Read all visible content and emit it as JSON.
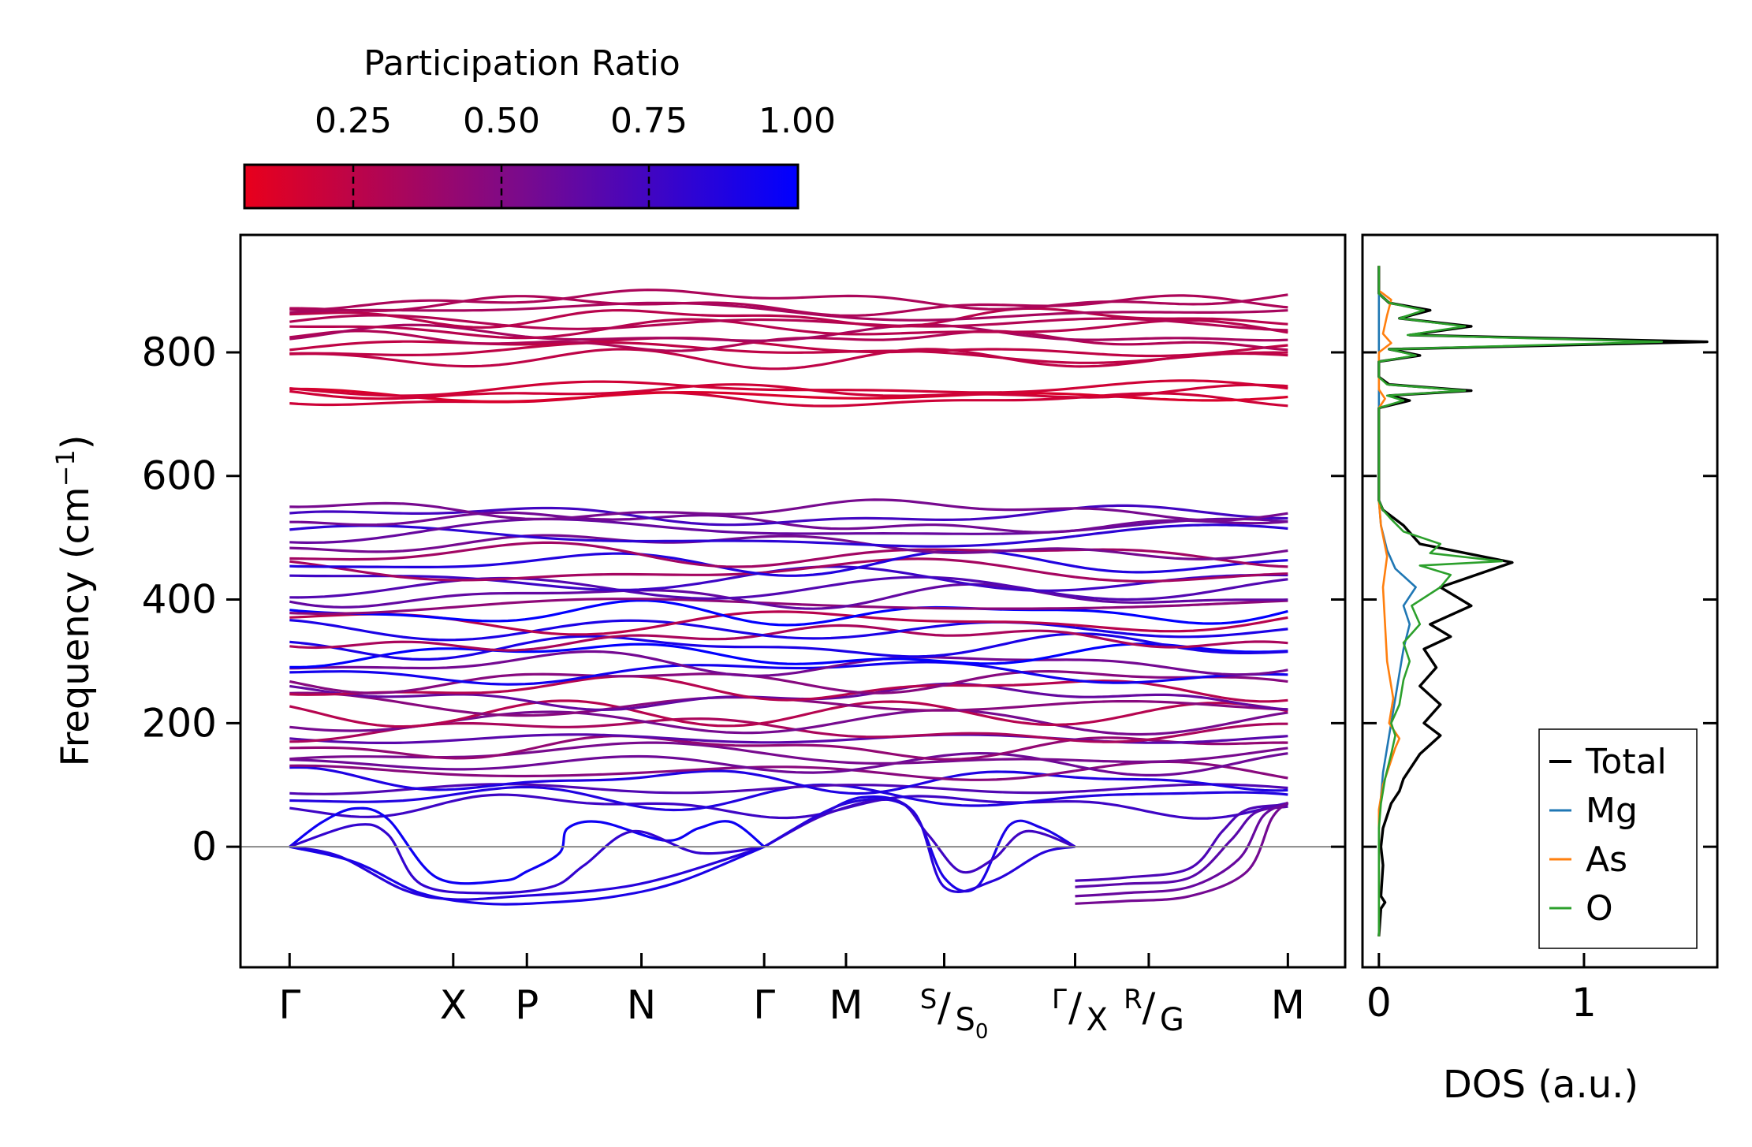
{
  "colorbar": {
    "title": "Participation Ratio",
    "ticks": [
      "0.25",
      "0.50",
      "0.75",
      "1.00"
    ],
    "tick_values": [
      0.25,
      0.5,
      0.75,
      1.0
    ],
    "range": [
      0.05,
      1.0
    ],
    "color_low": "#e8001c",
    "color_mid": "#7a0a8c",
    "color_high": "#0000ff"
  },
  "chart_data": [
    {
      "type": "line",
      "name": "phonon-dispersion",
      "ylabel_main": "Frequency (cm",
      "ylabel_sup": "−1",
      "ylabel_end": ")",
      "ylim": [
        -195,
        990
      ],
      "xlim": [
        -0.3,
        6.45
      ],
      "yticks": [
        0,
        200,
        400,
        600,
        800
      ],
      "ytick_labels": [
        "0",
        "200",
        "400",
        "600",
        "800"
      ],
      "kpoints": [
        {
          "pos": 0.0,
          "label": "Γ"
        },
        {
          "pos": 1.0,
          "label": "X"
        },
        {
          "pos": 1.45,
          "label": "P"
        },
        {
          "pos": 2.15,
          "label": "N"
        },
        {
          "pos": 2.9,
          "label": "Γ"
        },
        {
          "pos": 3.4,
          "label": "M"
        },
        {
          "pos": 4.0,
          "top": "S",
          "bottom": "S",
          "bottom_sub": "0"
        },
        {
          "pos": 4.8,
          "top": "Γ",
          "bottom": "X"
        },
        {
          "pos": 5.25,
          "top": "R",
          "bottom": "G"
        },
        {
          "pos": 6.1,
          "label": "M"
        }
      ],
      "segment_break": 4.8,
      "zero_line": 0,
      "acoustic_branches": [
        {
          "x": [
            0,
            0.2,
            0.4,
            0.6,
            0.9,
            1.3,
            1.45,
            1.65,
            1.7,
            1.9,
            2.3,
            2.5,
            2.7,
            2.9
          ],
          "y": [
            0,
            40,
            62,
            45,
            -50,
            -55,
            -40,
            -10,
            30,
            40,
            10,
            30,
            40,
            0
          ],
          "pr": 0.95
        },
        {
          "x": [
            0,
            0.4,
            0.6,
            0.8,
            1.2,
            1.6,
            1.8,
            2.1,
            2.5,
            2.9
          ],
          "y": [
            0,
            35,
            20,
            -60,
            -75,
            -65,
            -30,
            25,
            -10,
            0
          ],
          "pr": 0.8
        },
        {
          "x": [
            0,
            0.3,
            0.7,
            1.0,
            1.4,
            1.9,
            2.3,
            2.9
          ],
          "y": [
            0,
            -15,
            -70,
            -85,
            -80,
            -70,
            -50,
            0
          ],
          "pr": 0.85
        },
        {
          "x": [
            0,
            0.4,
            0.8,
            1.2,
            1.6,
            2.0,
            2.4,
            2.9
          ],
          "y": [
            0,
            -25,
            -75,
            -92,
            -90,
            -80,
            -55,
            0
          ],
          "pr": 0.9
        },
        {
          "x": [
            2.9,
            3.2,
            3.5,
            3.8,
            4.0,
            4.2,
            4.4,
            4.6,
            4.8
          ],
          "y": [
            0,
            45,
            80,
            60,
            -50,
            -65,
            35,
            30,
            0
          ],
          "pr": 0.9
        },
        {
          "x": [
            2.9,
            3.3,
            3.7,
            3.9,
            4.1,
            4.3,
            4.5,
            4.8
          ],
          "y": [
            0,
            55,
            75,
            20,
            -40,
            -20,
            25,
            0
          ],
          "pr": 0.75
        },
        {
          "x": [
            2.9,
            3.4,
            3.8,
            4.0,
            4.3,
            4.6,
            4.8
          ],
          "y": [
            0,
            70,
            60,
            -65,
            -55,
            -10,
            0
          ],
          "pr": 0.85
        },
        {
          "x": [
            4.8,
            5.1,
            5.5,
            5.7,
            5.85,
            6.1
          ],
          "y": [
            -55,
            -50,
            -35,
            25,
            60,
            68
          ],
          "pr": 0.7
        },
        {
          "x": [
            4.8,
            5.1,
            5.5,
            5.75,
            5.9,
            6.1
          ],
          "y": [
            -65,
            -60,
            -50,
            10,
            55,
            65
          ],
          "pr": 0.65
        },
        {
          "x": [
            4.8,
            5.1,
            5.5,
            5.8,
            5.95,
            6.1
          ],
          "y": [
            -80,
            -75,
            -65,
            -20,
            50,
            70
          ],
          "pr": 0.6
        },
        {
          "x": [
            4.8,
            5.1,
            5.5,
            5.85,
            6.0,
            6.1
          ],
          "y": [
            -92,
            -88,
            -80,
            -40,
            45,
            72
          ],
          "pr": 0.55
        }
      ],
      "optical_band_groups": [
        {
          "count": 34,
          "fmin": 60,
          "fmax": 520,
          "pr_low": 0.25,
          "pr_high": 1.0
        },
        {
          "count": 3,
          "fmin": 520,
          "fmax": 550,
          "pr_low": 0.45,
          "pr_high": 0.75
        },
        {
          "count": 4,
          "fmin": 720,
          "fmax": 745,
          "pr_low": 0.1,
          "pr_high": 0.2
        },
        {
          "count": 11,
          "fmin": 785,
          "fmax": 890,
          "pr_low": 0.15,
          "pr_high": 0.35
        }
      ]
    },
    {
      "type": "line",
      "name": "density-of-states",
      "xlabel": "DOS (a.u.)",
      "xlim": [
        -0.08,
        1.65
      ],
      "ylim": [
        -195,
        990
      ],
      "xticks": [
        0,
        1
      ],
      "xtick_labels": [
        "0",
        "1"
      ],
      "legend_position": "lower-right",
      "series": [
        {
          "name": "Total",
          "color": "#000000",
          "points": [
            [
              0,
              -145
            ],
            [
              0.01,
              -100
            ],
            [
              0.03,
              -90
            ],
            [
              0.01,
              -80
            ],
            [
              0.02,
              -30
            ],
            [
              0.01,
              0
            ],
            [
              0.02,
              30
            ],
            [
              0.04,
              50
            ],
            [
              0.06,
              70
            ],
            [
              0.1,
              90
            ],
            [
              0.12,
              110
            ],
            [
              0.16,
              130
            ],
            [
              0.2,
              150
            ],
            [
              0.25,
              165
            ],
            [
              0.3,
              180
            ],
            [
              0.22,
              200
            ],
            [
              0.3,
              230
            ],
            [
              0.2,
              260
            ],
            [
              0.28,
              290
            ],
            [
              0.22,
              320
            ],
            [
              0.35,
              340
            ],
            [
              0.25,
              360
            ],
            [
              0.45,
              390
            ],
            [
              0.3,
              420
            ],
            [
              0.65,
              460
            ],
            [
              0.2,
              490
            ],
            [
              0.12,
              520
            ],
            [
              0.02,
              545
            ],
            [
              0,
              560
            ],
            [
              0,
              710
            ],
            [
              0.15,
              722
            ],
            [
              0.05,
              730
            ],
            [
              0.45,
              738
            ],
            [
              0.05,
              748
            ],
            [
              0,
              760
            ],
            [
              0,
              785
            ],
            [
              0.2,
              795
            ],
            [
              0.05,
              805
            ],
            [
              1.6,
              817
            ],
            [
              0.15,
              828
            ],
            [
              0.45,
              842
            ],
            [
              0.1,
              855
            ],
            [
              0.25,
              868
            ],
            [
              0.05,
              880
            ],
            [
              0,
              895
            ],
            [
              0,
              940
            ]
          ]
        },
        {
          "name": "Mg",
          "color": "#1f77b4",
          "points": [
            [
              0,
              -145
            ],
            [
              0,
              40
            ],
            [
              0.01,
              80
            ],
            [
              0.02,
              120
            ],
            [
              0.04,
              160
            ],
            [
              0.06,
              200
            ],
            [
              0.08,
              240
            ],
            [
              0.1,
              280
            ],
            [
              0.12,
              320
            ],
            [
              0.15,
              360
            ],
            [
              0.12,
              390
            ],
            [
              0.18,
              420
            ],
            [
              0.08,
              450
            ],
            [
              0.04,
              480
            ],
            [
              0.01,
              520
            ],
            [
              0,
              560
            ],
            [
              0,
              940
            ]
          ]
        },
        {
          "name": "As",
          "color": "#ff7f0e",
          "points": [
            [
              0,
              -145
            ],
            [
              0,
              60
            ],
            [
              0.02,
              100
            ],
            [
              0.05,
              130
            ],
            [
              0.08,
              160
            ],
            [
              0.1,
              175
            ],
            [
              0.05,
              200
            ],
            [
              0.07,
              240
            ],
            [
              0.04,
              300
            ],
            [
              0.03,
              360
            ],
            [
              0.02,
              420
            ],
            [
              0.04,
              470
            ],
            [
              0.01,
              520
            ],
            [
              0,
              560
            ],
            [
              0,
              710
            ],
            [
              0.03,
              725
            ],
            [
              0,
              740
            ],
            [
              0,
              800
            ],
            [
              0.06,
              815
            ],
            [
              0.02,
              830
            ],
            [
              0.04,
              860
            ],
            [
              0.06,
              885
            ],
            [
              0,
              900
            ],
            [
              0,
              940
            ]
          ]
        },
        {
          "name": "O",
          "color": "#2ca02c",
          "points": [
            [
              0,
              -145
            ],
            [
              0,
              30
            ],
            [
              0.01,
              70
            ],
            [
              0.03,
              110
            ],
            [
              0.06,
              150
            ],
            [
              0.08,
              180
            ],
            [
              0.06,
              200
            ],
            [
              0.1,
              230
            ],
            [
              0.12,
              270
            ],
            [
              0.15,
              300
            ],
            [
              0.12,
              330
            ],
            [
              0.2,
              360
            ],
            [
              0.16,
              390
            ],
            [
              0.3,
              420
            ],
            [
              0.35,
              440
            ],
            [
              0.2,
              455
            ],
            [
              0.6,
              462
            ],
            [
              0.25,
              475
            ],
            [
              0.3,
              490
            ],
            [
              0.12,
              510
            ],
            [
              0.06,
              530
            ],
            [
              0.02,
              545
            ],
            [
              0,
              560
            ],
            [
              0,
              710
            ],
            [
              0.12,
              722
            ],
            [
              0.04,
              730
            ],
            [
              0.42,
              738
            ],
            [
              0.04,
              748
            ],
            [
              0,
              760
            ],
            [
              0,
              785
            ],
            [
              0.18,
              795
            ],
            [
              0.05,
              805
            ],
            [
              1.38,
              817
            ],
            [
              0.14,
              828
            ],
            [
              0.42,
              842
            ],
            [
              0.1,
              855
            ],
            [
              0.22,
              868
            ],
            [
              0.05,
              880
            ],
            [
              0,
              895
            ],
            [
              0,
              940
            ]
          ]
        }
      ]
    }
  ]
}
